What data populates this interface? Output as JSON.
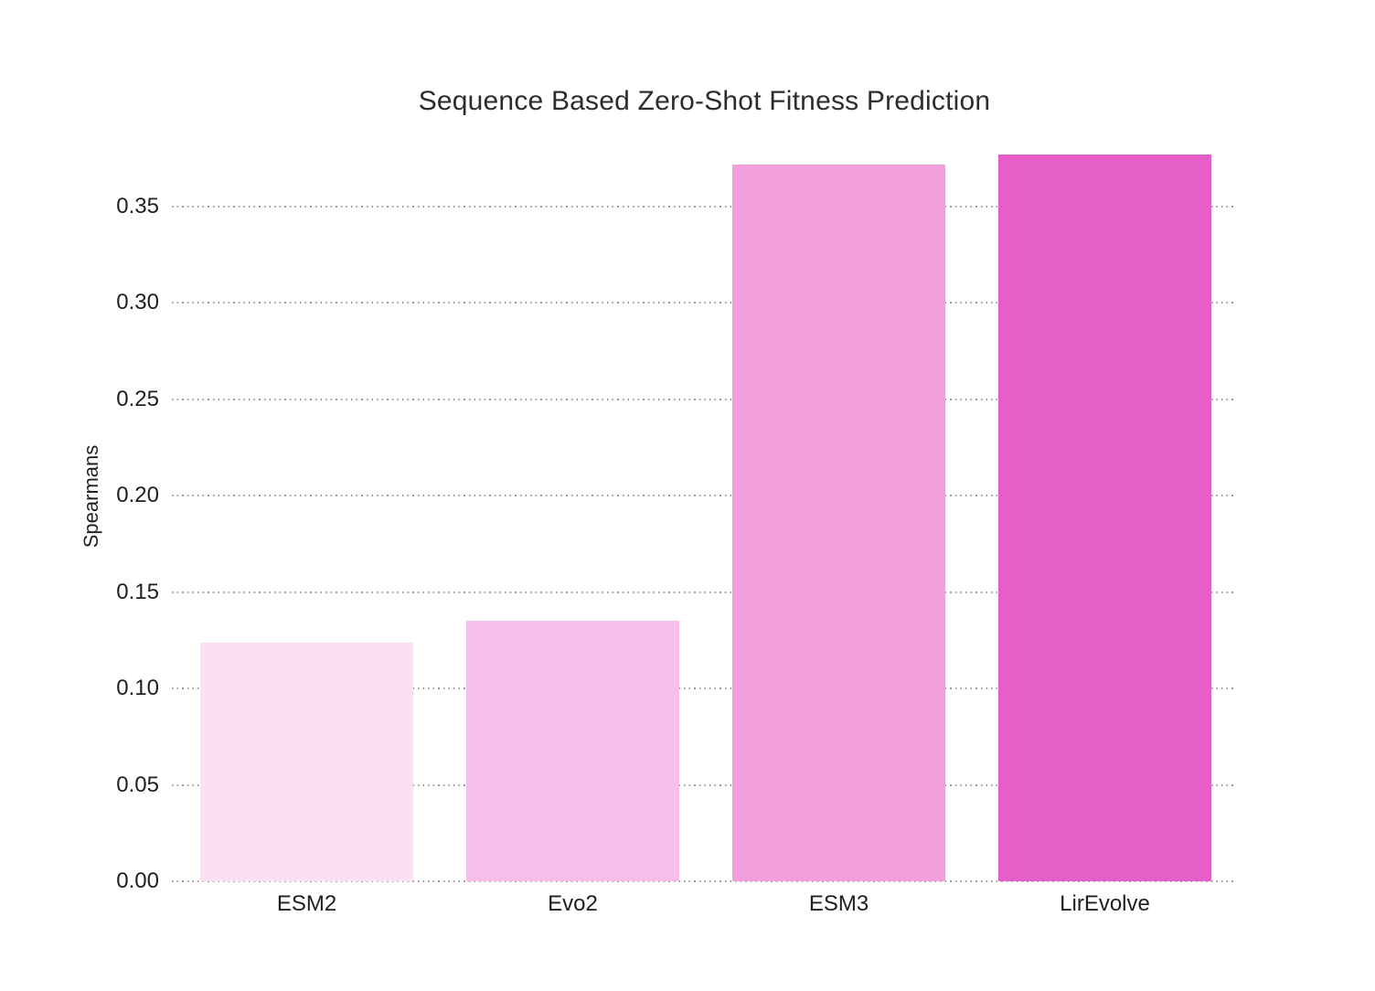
{
  "title": "Sequence Based Zero-Shot Fitness Prediction",
  "chart_data": {
    "type": "bar",
    "title": "Sequence Based Zero-Shot Fitness Prediction",
    "categories": [
      "ESM2",
      "Evo2",
      "ESM3",
      "LirEvolve"
    ],
    "values": [
      0.124,
      0.135,
      0.372,
      0.377
    ],
    "bar_colors": [
      "#fbdff3",
      "#f6bfe9",
      "#f1a0dd",
      "#e65fc9"
    ],
    "xlabel": "",
    "ylabel": "Spearmans",
    "ylim": [
      0,
      0.377
    ],
    "yticks": [
      0,
      0.05,
      0.1,
      0.15,
      0.2,
      0.25,
      0.3,
      0.35
    ],
    "ytick_labels": [
      "0.00",
      "0.05",
      "0.10",
      "0.15",
      "0.20",
      "0.25",
      "0.30",
      "0.35"
    ],
    "grid": "horizontal-dotted",
    "gridline_color": "#9a9a9a",
    "legend_position": "none",
    "background_color": "#ffffff",
    "text_color": "#1f1f1f",
    "title_color": "#2d2d2d"
  }
}
